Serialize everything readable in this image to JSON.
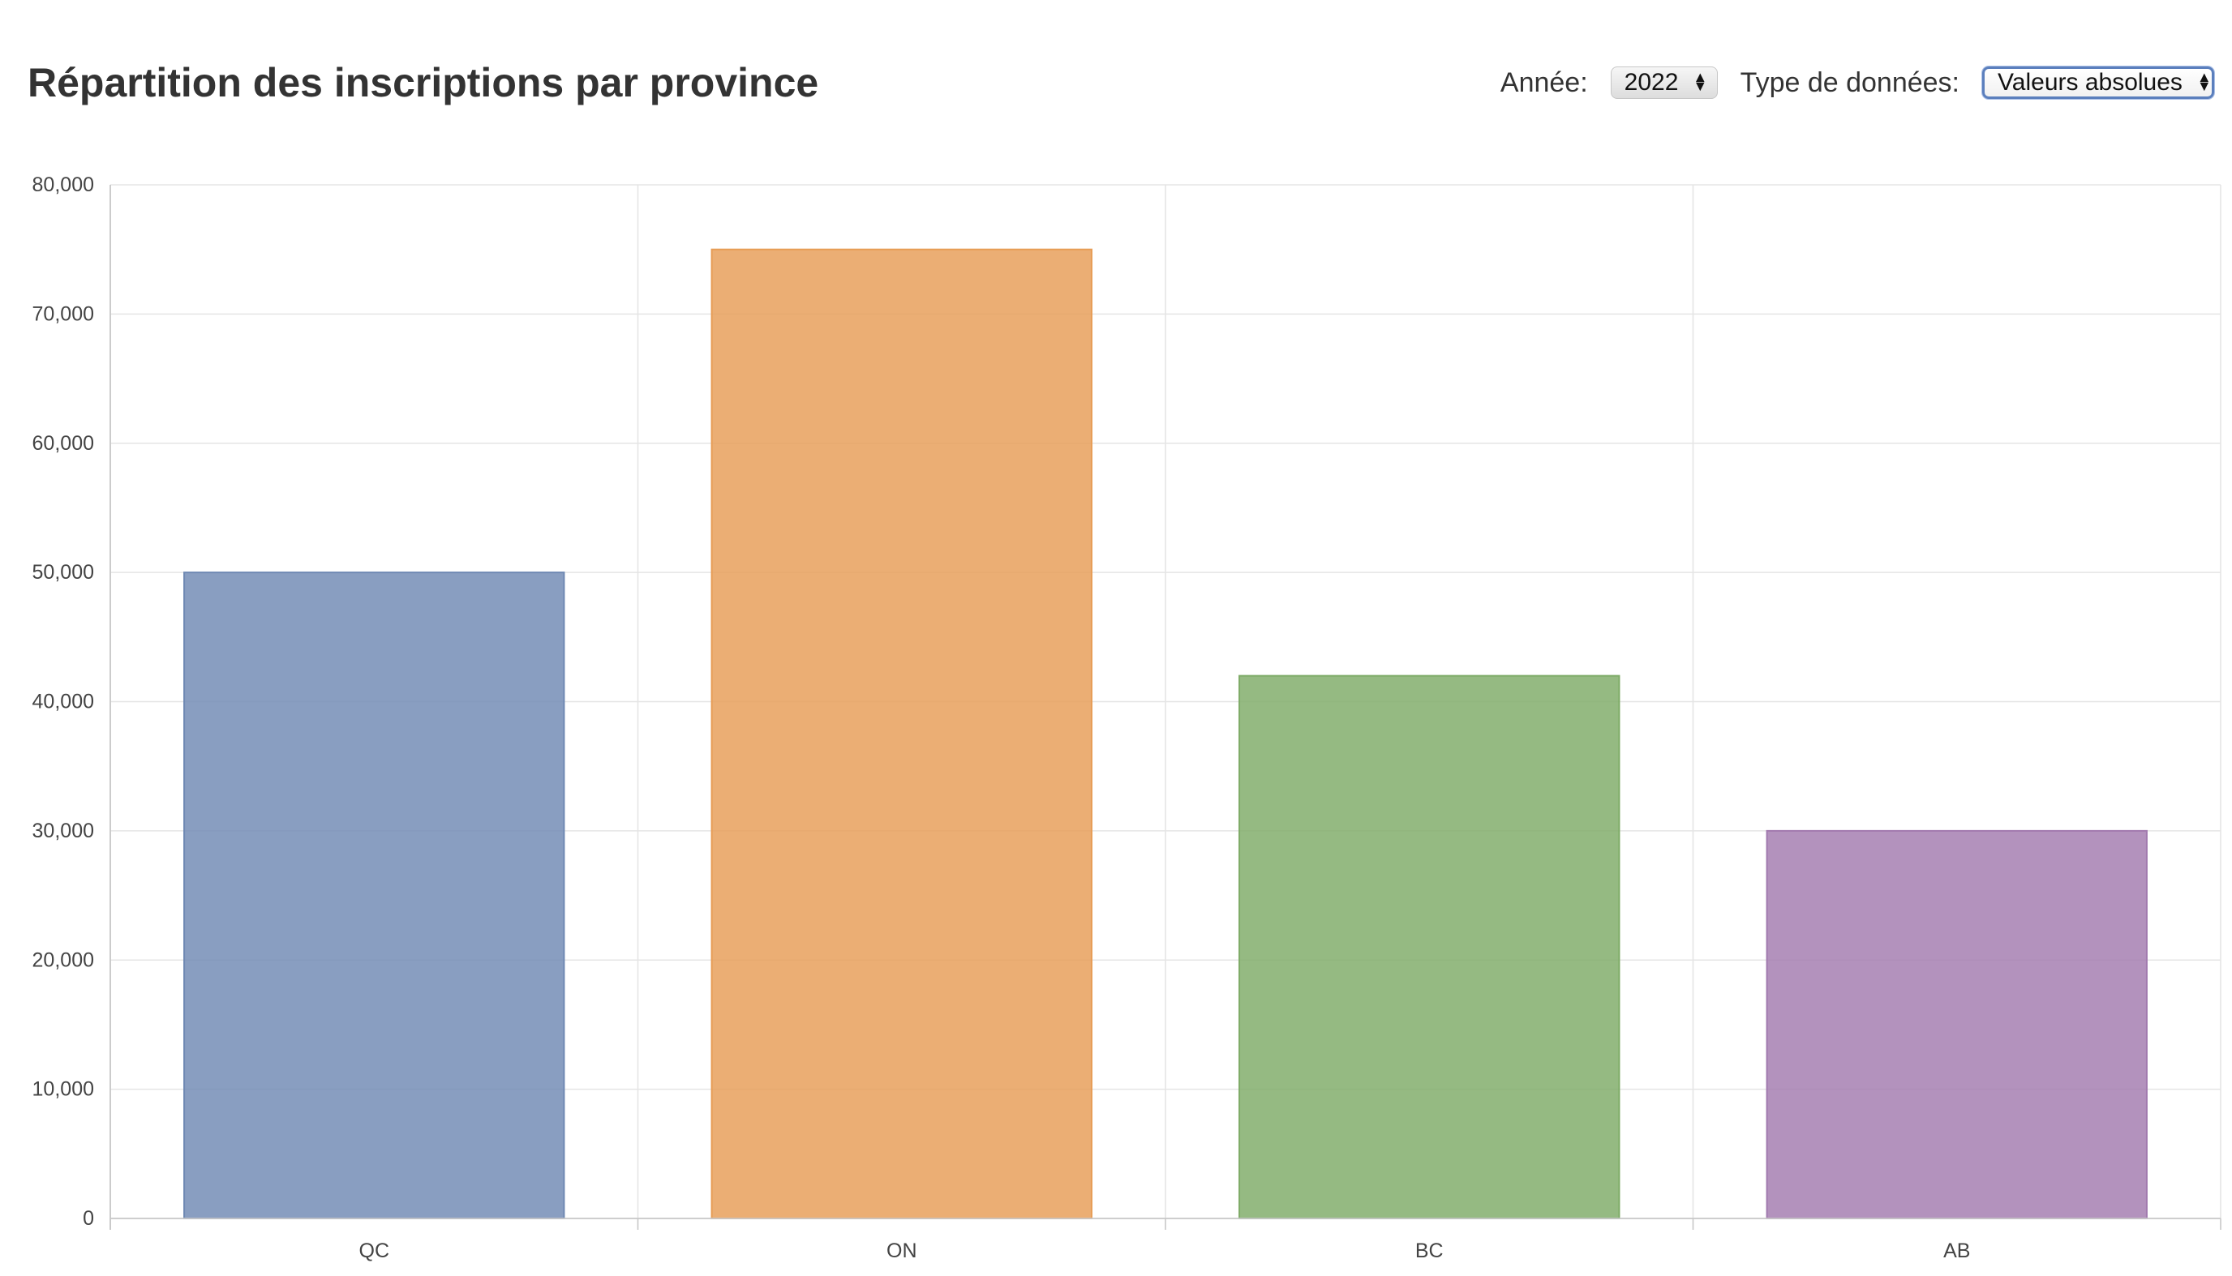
{
  "header": {
    "title": "Répartition des inscriptions par province"
  },
  "controls": {
    "year_label": "Année:",
    "year_value": "2022",
    "data_type_label": "Type de données:",
    "data_type_value": "Valeurs absolues"
  },
  "icons": {
    "select_arrows": "up-down-chevron-icon"
  },
  "colors": {
    "QC": "#6f89b3",
    "ON": "#e79c55",
    "BC": "#7eab67",
    "AB": "#a27aaf",
    "grid": "#e5e5e5",
    "axis": "#c8c8c8"
  },
  "chart_data": {
    "type": "bar",
    "categories": [
      "QC",
      "ON",
      "BC",
      "AB"
    ],
    "values": [
      50000,
      75000,
      42000,
      30000
    ],
    "title": "",
    "xlabel": "",
    "ylabel": "",
    "ylim": [
      0,
      80000
    ],
    "yticks": [
      0,
      10000,
      20000,
      30000,
      40000,
      50000,
      60000,
      70000,
      80000
    ],
    "ytick_labels": [
      "0",
      "10,000",
      "20,000",
      "30,000",
      "40,000",
      "50,000",
      "60,000",
      "70,000",
      "80,000"
    ],
    "grid": true,
    "legend": "none"
  }
}
